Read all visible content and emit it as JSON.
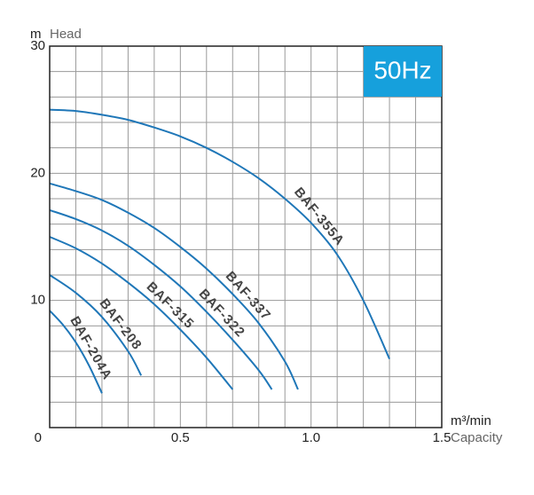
{
  "chart_data": {
    "type": "line",
    "y_unit": "m",
    "ylabel": "Head",
    "x_unit": "m³/min",
    "xlabel": "Capacity",
    "badge": "50Hz",
    "badge_color": "#16a0dc",
    "xlim": [
      0,
      1.5
    ],
    "ylim": [
      0,
      30
    ],
    "xticks": [
      0,
      0.5,
      {
        "value": 1,
        "label": "1.0"
      },
      1.5
    ],
    "yticks": [
      10,
      20,
      30
    ],
    "xgrid": [
      0.1,
      0.2,
      0.3,
      0.4,
      0.5,
      0.6,
      0.7,
      0.8,
      0.9,
      1.0,
      1.1,
      1.2,
      1.3,
      1.4
    ],
    "ygrid": [
      2,
      4,
      6,
      8,
      10,
      12,
      14,
      16,
      18,
      20,
      22,
      24,
      26,
      28
    ],
    "grid": true,
    "series": [
      {
        "name": "BAF-355A",
        "color": "#1f77b8",
        "x": [
          0,
          0.1,
          0.2,
          0.3,
          0.4,
          0.5,
          0.6,
          0.7,
          0.8,
          0.9,
          1.0,
          1.1,
          1.2,
          1.3
        ],
        "values": [
          25,
          24.9,
          24.6,
          24.2,
          23.6,
          22.9,
          22,
          20.9,
          19.6,
          18,
          16.1,
          13.6,
          10,
          5.4
        ]
      },
      {
        "name": "BAF-337",
        "color": "#1f77b8",
        "x": [
          0,
          0.1,
          0.2,
          0.3,
          0.4,
          0.5,
          0.6,
          0.7,
          0.8,
          0.9,
          0.95
        ],
        "values": [
          19.2,
          18.6,
          17.9,
          16.9,
          15.7,
          14.2,
          12.5,
          10.5,
          8.2,
          5.2,
          3.0
        ]
      },
      {
        "name": "BAF-322",
        "color": "#1f77b8",
        "x": [
          0,
          0.1,
          0.2,
          0.3,
          0.4,
          0.5,
          0.6,
          0.7,
          0.8,
          0.85
        ],
        "values": [
          17.1,
          16.4,
          15.5,
          14.3,
          12.8,
          11.1,
          9.1,
          6.9,
          4.5,
          3.0
        ]
      },
      {
        "name": "BAF-315",
        "color": "#1f77b8",
        "x": [
          0,
          0.1,
          0.2,
          0.3,
          0.4,
          0.5,
          0.6,
          0.7
        ],
        "values": [
          15,
          14.1,
          12.9,
          11.4,
          9.7,
          7.7,
          5.5,
          3.0
        ]
      },
      {
        "name": "BAF-208",
        "color": "#1f77b8",
        "x": [
          0,
          0.1,
          0.2,
          0.3,
          0.35
        ],
        "values": [
          12,
          10.6,
          8.7,
          6,
          4.1
        ]
      },
      {
        "name": "BAF-204A",
        "color": "#1f77b8",
        "x": [
          0,
          0.05,
          0.1,
          0.15,
          0.2
        ],
        "values": [
          9.2,
          8.1,
          6.7,
          4.9,
          2.7
        ]
      }
    ]
  }
}
